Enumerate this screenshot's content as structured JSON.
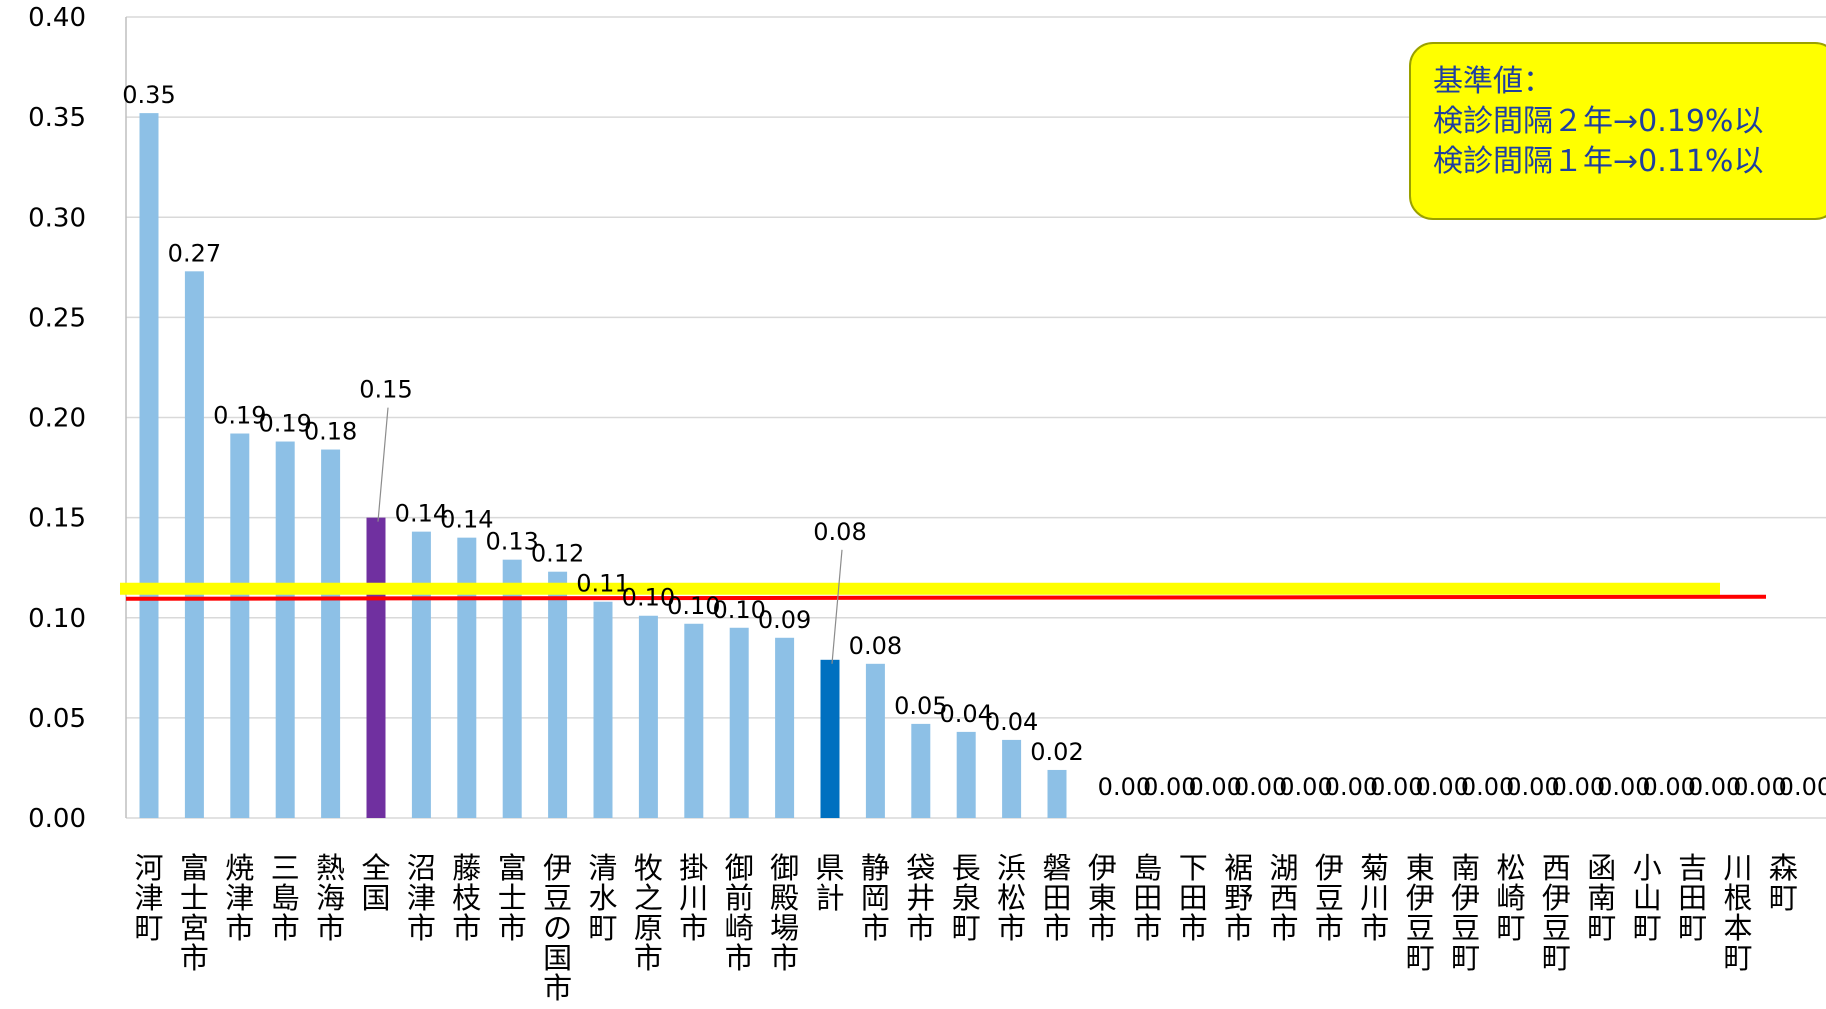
{
  "chart_data": {
    "type": "bar",
    "title": "",
    "xlabel": "",
    "ylabel": "",
    "ylim": [
      0,
      0.4
    ],
    "y_ticks": [
      "0.00",
      "0.05",
      "0.10",
      "0.15",
      "0.20",
      "0.25",
      "0.30",
      "0.35",
      "0.40"
    ],
    "grid": true,
    "categories": [
      "河津町",
      "富士宮市",
      "焼津市",
      "三島市",
      "熱海市",
      "全国",
      "沼津市",
      "藤枝市",
      "富士市",
      "伊豆の国市",
      "清水町",
      "牧之原市",
      "掛川市",
      "御前崎市",
      "御殿場市",
      "県計",
      "静岡市",
      "袋井市",
      "長泉町",
      "浜松市",
      "磐田市",
      "伊東市",
      "島田市",
      "下田市",
      "裾野市",
      "湖西市",
      "伊豆市",
      "菊川市",
      "東伊豆町",
      "南伊豆町",
      "松崎町",
      "西伊豆町",
      "函南町",
      "小山町",
      "吉田町",
      "川根本町",
      "森町"
    ],
    "values": [
      0.352,
      0.273,
      0.192,
      0.188,
      0.184,
      0.15,
      0.143,
      0.14,
      0.129,
      0.123,
      0.108,
      0.101,
      0.097,
      0.095,
      0.09,
      0.079,
      0.077,
      0.047,
      0.043,
      0.039,
      0.024,
      0,
      0,
      0,
      0,
      0,
      0,
      0,
      0,
      0,
      0,
      0,
      0,
      0,
      0,
      0,
      0
    ],
    "data_labels": [
      "0.35",
      "0.27",
      "0.19",
      "0.19",
      "0.18",
      "0.15",
      "0.14",
      "0.14",
      "0.13",
      "0.12",
      "0.11",
      "0.10",
      "0.10",
      "0.10",
      "0.09",
      "0.08",
      "0.08",
      "0.05",
      "0.04",
      "0.04",
      "0.02",
      "0.00",
      "0.00",
      "0.00",
      "0.00",
      "0.00",
      "0.00",
      "0.00",
      "0.00",
      "0.00",
      "0.00",
      "0.00",
      "0.00",
      "0.00",
      "0.00",
      "0.00",
      "0.00"
    ],
    "highlight": {
      "全国": "#7030a0",
      "県計": "#0070c0"
    },
    "bar_color": "#8dc0e6",
    "reference_lines": [
      {
        "value": 0.11,
        "color": "#ffff00"
      },
      {
        "value": 0.11,
        "color": "#ff0000"
      }
    ]
  },
  "annotation": {
    "lines": [
      "基準値：",
      "検診間隔２年→0.19%以",
      "検診間隔１年→0.11%以"
    ],
    "bg_color": "#ffff00",
    "text_color": "#1f3fa0"
  }
}
